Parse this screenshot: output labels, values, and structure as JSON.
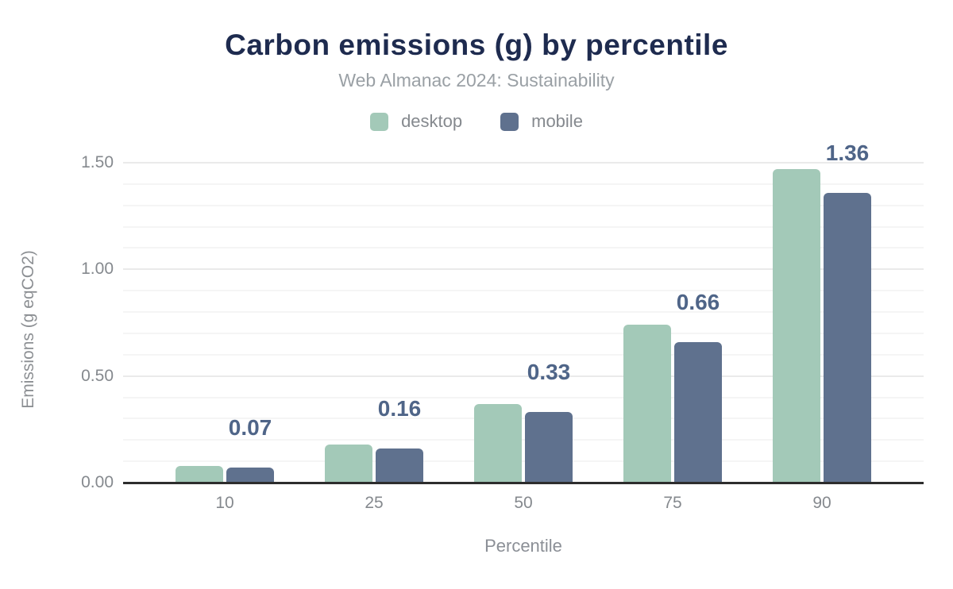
{
  "chart_data": {
    "type": "bar",
    "title": "Carbon emissions (g) by percentile",
    "subtitle": "Web Almanac 2024: Sustainability",
    "xlabel": "Percentile",
    "ylabel": "Emissions (g eqCO2)",
    "categories": [
      "10",
      "25",
      "50",
      "75",
      "90"
    ],
    "series": [
      {
        "name": "desktop",
        "color": "#a3c9b8",
        "values": [
          0.08,
          0.18,
          0.37,
          0.74,
          1.47
        ]
      },
      {
        "name": "mobile",
        "color": "#5f718e",
        "values": [
          0.07,
          0.16,
          0.33,
          0.66,
          1.36
        ],
        "data_labels": [
          "0.07",
          "0.16",
          "0.33",
          "0.66",
          "1.36"
        ]
      }
    ],
    "labeled_series": "mobile",
    "legend_position": "top",
    "legend_entries": [
      "desktop",
      "mobile"
    ],
    "ylim": [
      0,
      1.55
    ],
    "ytick_values": [
      0,
      0.5,
      1.0,
      1.5
    ],
    "ytick_labels": [
      "0.00",
      "0.50",
      "1.00",
      "1.50"
    ],
    "grid": {
      "show": true,
      "minor_step": 0.1,
      "major_step": 0.5
    }
  },
  "colors": {
    "background": "#ffffff",
    "title": "#1e2b4f",
    "subtitle": "#9aa0a5",
    "axis_text": "#85898e",
    "grid_minor": "#f5f5f5",
    "grid_major": "#eaeaea",
    "baseline": "#2d2d2d",
    "bar_label": "#4f6588",
    "desktop_series": "#a3c9b8",
    "mobile_series": "#5f718e"
  }
}
